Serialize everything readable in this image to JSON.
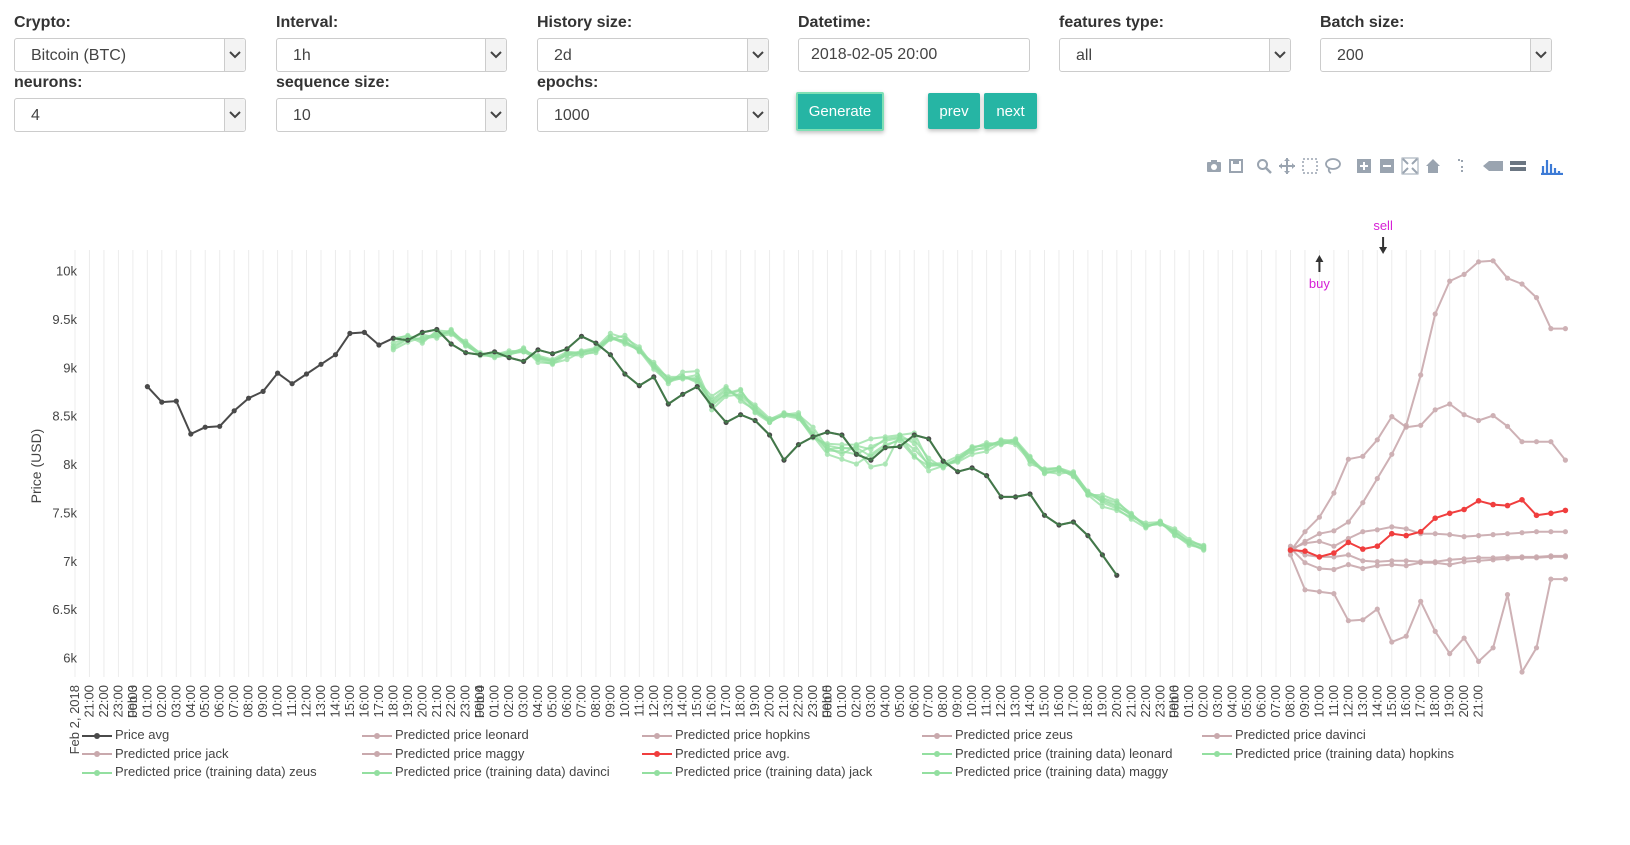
{
  "controls": {
    "crypto": {
      "label": "Crypto:",
      "value": "Bitcoin (BTC)"
    },
    "interval": {
      "label": "Interval:",
      "value": "1h"
    },
    "history_size": {
      "label": "History size:",
      "value": "2d"
    },
    "datetime": {
      "label": "Datetime:",
      "value": "2018-02-05 20:00"
    },
    "features_type": {
      "label": "features type:",
      "value": "all"
    },
    "batch_size": {
      "label": "Batch size:",
      "value": "200"
    },
    "neurons": {
      "label": "neurons:",
      "value": "4"
    },
    "sequence_size": {
      "label": "sequence size:",
      "value": "10"
    },
    "epochs": {
      "label": "epochs:",
      "value": "1000"
    },
    "generate_label": "Generate",
    "prev_label": "prev",
    "next_label": "next"
  },
  "modebar_icons": [
    "camera-icon",
    "save-icon",
    "zoom-icon",
    "pan-icon",
    "box-select-icon",
    "lasso-icon",
    "zoom-in-icon",
    "zoom-out-icon",
    "autoscale-icon",
    "home-icon",
    "spike-lines-icon",
    "hover-closest-icon",
    "hover-compare-icon",
    "plotly-logo-icon"
  ],
  "chart_data": {
    "type": "line",
    "ylabel": "Price (USD)",
    "yticks": [
      {
        "v": 6000,
        "label": "6k"
      },
      {
        "v": 6500,
        "label": "6.5k"
      },
      {
        "v": 7000,
        "label": "7k"
      },
      {
        "v": 7500,
        "label": "7.5k"
      },
      {
        "v": 8000,
        "label": "8k"
      },
      {
        "v": 8500,
        "label": "8.5k"
      },
      {
        "v": 9000,
        "label": "9k"
      },
      {
        "v": 9500,
        "label": "9.5k"
      },
      {
        "v": 10000,
        "label": "10k"
      }
    ],
    "ylim": [
      5850,
      10200
    ],
    "x_start_label": "Feb 2, 2018",
    "x_ticks_hours_start": 20,
    "x_ticks_count": 98,
    "x_date_labels": [
      {
        "i": 4,
        "label": "Feb 3"
      },
      {
        "i": 28,
        "label": "Feb 4"
      },
      {
        "i": 52,
        "label": "Feb 5"
      },
      {
        "i": 76,
        "label": "Feb 6"
      }
    ],
    "colors": {
      "actual": "#4a4a4a",
      "predicted": "#c9a9ad",
      "pred_avg": "#f03e3e",
      "training": "#93dfa0",
      "training_dark": "#3c9e49",
      "annotation": "#d61fd6"
    },
    "annotations": [
      {
        "text": "buy",
        "x": 86,
        "y": 9950,
        "dir": "up"
      },
      {
        "text": "sell",
        "x": 90.4,
        "y": 9950,
        "dir": "down"
      }
    ],
    "series_actual": {
      "name": "Price avg",
      "x_start": 5,
      "values": [
        8800,
        8640,
        8650,
        8310,
        8380,
        8390,
        8550,
        8680,
        8750,
        8940,
        8830,
        8930,
        9030,
        9130,
        9350,
        9360,
        9230,
        9300,
        9280,
        9360,
        9390,
        9240,
        9150,
        9130,
        9160,
        9100,
        9060,
        9180,
        9140,
        9190,
        9320,
        9250,
        9130,
        8930,
        8810,
        8900,
        8620,
        8720,
        8800,
        8600,
        8430,
        8510,
        8450,
        8300,
        8040,
        8200,
        8280,
        8330,
        8300,
        8100,
        8040,
        8170,
        8180,
        8300,
        8260,
        8030,
        7920,
        7960,
        7880,
        7660,
        7660,
        7690,
        7470,
        7370,
        7400,
        7260,
        7060,
        6850
      ]
    },
    "series_training": [
      {
        "name": "Predicted price (training data) leonard",
        "x_start": 22,
        "values": [
          9200,
          9290,
          9300,
          9330,
          9380,
          9250,
          9130,
          9110,
          9140,
          9160,
          9100,
          9050,
          9150,
          9140,
          9150,
          9290,
          9280,
          9160,
          9050,
          8880,
          8900,
          8870,
          8700,
          8800,
          8650,
          8560,
          8430,
          8520,
          8500,
          8330,
          8150,
          8170,
          8150,
          7970,
          8000,
          8300,
          8320,
          8020,
          7970,
          8060,
          8160,
          8220,
          8200,
          8250,
          8080,
          7900,
          7940,
          7880,
          7680,
          7680,
          7620,
          7470,
          7360,
          7390,
          7330,
          7220,
          7140
        ]
      },
      {
        "name": "Predicted price (training data) hopkins",
        "x_start": 22,
        "values": [
          9300,
          9320,
          9250,
          9380,
          9370,
          9250,
          9150,
          9120,
          9150,
          9190,
          9090,
          9070,
          9120,
          9170,
          9200,
          9350,
          9300,
          9210,
          9010,
          8830,
          8950,
          8960,
          8620,
          8730,
          8770,
          8530,
          8430,
          8520,
          8480,
          8270,
          8210,
          8200,
          8200,
          8260,
          8280,
          8300,
          8210,
          7980,
          7990,
          8050,
          8130,
          8180,
          8240,
          8220,
          8060,
          7920,
          7900,
          7920,
          7710,
          7640,
          7570,
          7470,
          7360,
          7380,
          7300,
          7180,
          7120
        ]
      },
      {
        "name": "Predicted price (training data) zeus",
        "x_start": 22,
        "values": [
          9250,
          9310,
          9290,
          9320,
          9340,
          9270,
          9140,
          9100,
          9130,
          9170,
          9110,
          9060,
          9140,
          9150,
          9180,
          9310,
          9240,
          9180,
          9000,
          8900,
          8900,
          8860,
          8640,
          8760,
          8700,
          8590,
          8450,
          8500,
          8470,
          8290,
          8100,
          8050,
          8000,
          8100,
          8200,
          8240,
          8070,
          7980,
          8000,
          8020,
          8100,
          8130,
          8220,
          8260,
          8000,
          7950,
          7960,
          7890,
          7680,
          7560,
          7520,
          7450,
          7390,
          7400,
          7260,
          7180,
          7110
        ]
      },
      {
        "name": "Predicted price (training data) davinci",
        "x_start": 22,
        "values": [
          9220,
          9300,
          9340,
          9300,
          9390,
          9230,
          9130,
          9150,
          9130,
          9200,
          9050,
          9040,
          9080,
          9160,
          9180,
          9290,
          9330,
          9170,
          9030,
          8880,
          8880,
          8890,
          8560,
          8700,
          8720,
          8610,
          8470,
          8500,
          8510,
          8380,
          8170,
          8100,
          8190,
          8150,
          8260,
          8280,
          8090,
          7930,
          7980,
          8030,
          8150,
          8160,
          8250,
          8240,
          8040,
          7910,
          7930,
          7900,
          7720,
          7600,
          7540,
          7430,
          7340,
          7410,
          7270,
          7160,
          7130
        ]
      },
      {
        "name": "Predicted price (training data) jack",
        "x_start": 22,
        "values": [
          9290,
          9330,
          9270,
          9360,
          9350,
          9220,
          9140,
          9130,
          9170,
          9160,
          9080,
          9030,
          9130,
          9120,
          9170,
          9300,
          9260,
          9190,
          9020,
          8860,
          8910,
          8840,
          8660,
          8780,
          8680,
          8540,
          8460,
          8530,
          8490,
          8310,
          8140,
          8130,
          8100,
          8180,
          8240,
          8270,
          8150,
          8000,
          8010,
          8080,
          8170,
          8200,
          8230,
          8200,
          8030,
          7940,
          7960,
          7910,
          7690,
          7620,
          7560,
          7480,
          7370,
          7380,
          7310,
          7190,
          7150
        ]
      },
      {
        "name": "Predicted price (training data) maggy",
        "x_start": 22,
        "values": [
          9180,
          9260,
          9310,
          9340,
          9360,
          9240,
          9120,
          9120,
          9150,
          9170,
          9120,
          9080,
          9160,
          9150,
          9190,
          9320,
          9260,
          9170,
          8980,
          8850,
          8890,
          8920,
          8600,
          8720,
          8760,
          8570,
          8440,
          8510,
          8530,
          8280,
          8190,
          8160,
          8170,
          8080,
          8180,
          8260,
          8250,
          8060,
          7960,
          8050,
          8180,
          8190,
          8210,
          8230,
          8070,
          7930,
          7950,
          7870,
          7700,
          7650,
          7600,
          7490,
          7350,
          7400,
          7290,
          7200,
          7160
        ]
      }
    ],
    "series_predicted": [
      {
        "name": "Predicted price leonard",
        "x_start": 84,
        "values": [
          7120,
          7180,
          7200,
          7150,
          7230,
          7300,
          7320,
          7350,
          7330,
          7280,
          7280,
          7270,
          7250,
          7260,
          7270,
          7280,
          7290,
          7300,
          7300,
          7300
        ]
      },
      {
        "name": "Predicted price hopkins",
        "x_start": 84,
        "values": [
          7150,
          7060,
          7040,
          7040,
          7060,
          7000,
          6990,
          7000,
          7000,
          6990,
          6990,
          7010,
          7020,
          7030,
          7030,
          7040,
          7040,
          7040,
          7050,
          7050
        ]
      },
      {
        "name": "Predicted price zeus",
        "x_start": 84,
        "values": [
          7100,
          7300,
          7450,
          7700,
          8050,
          8080,
          8250,
          8490,
          8380,
          8400,
          8560,
          8620,
          8510,
          8450,
          8500,
          8390,
          8230,
          8230,
          8230,
          8040
        ]
      },
      {
        "name": "Predicted price davinci",
        "x_start": 84,
        "values": [
          7130,
          6980,
          6920,
          6910,
          6960,
          6920,
          6950,
          6960,
          6950,
          6980,
          6980,
          6960,
          6990,
          7000,
          7010,
          7020,
          7030,
          7030,
          7040,
          7040
        ]
      },
      {
        "name": "Predicted price jack",
        "x_start": 84,
        "values": [
          7100,
          7200,
          7280,
          7310,
          7400,
          7600,
          7850,
          8100,
          8400,
          8920,
          9550,
          9890,
          9960,
          10090,
          10100,
          9920,
          9860,
          9720,
          9400,
          9400
        ]
      },
      {
        "name": "Predicted price maggy",
        "x_start": 84,
        "values": [
          7060,
          6700,
          6680,
          6660,
          6380,
          6390,
          6500,
          6160,
          6220,
          6580,
          6270,
          6040,
          6200,
          5960,
          6100,
          6650,
          5850,
          6100,
          6810,
          6810
        ]
      }
    ],
    "series_pred_avg": {
      "name": "Predicted price avg.",
      "x_start": 84,
      "values": [
        7110,
        7100,
        7040,
        7080,
        7190,
        7120,
        7150,
        7280,
        7260,
        7300,
        7440,
        7490,
        7530,
        7620,
        7580,
        7570,
        7630,
        7470,
        7490,
        7520
      ]
    },
    "legend": [
      [
        "Price avg",
        "Predicted price leonard",
        "Predicted price hopkins",
        "Predicted price zeus",
        "Predicted price davinci"
      ],
      [
        "Predicted price jack",
        "Predicted price maggy",
        "Predicted price avg.",
        "Predicted price (training data) leonard",
        "Predicted price (training data) hopkins"
      ],
      [
        "Predicted price (training data) zeus",
        "Predicted price (training data) davinci",
        "Predicted price (training data) jack",
        "Predicted price (training data) maggy"
      ]
    ]
  }
}
